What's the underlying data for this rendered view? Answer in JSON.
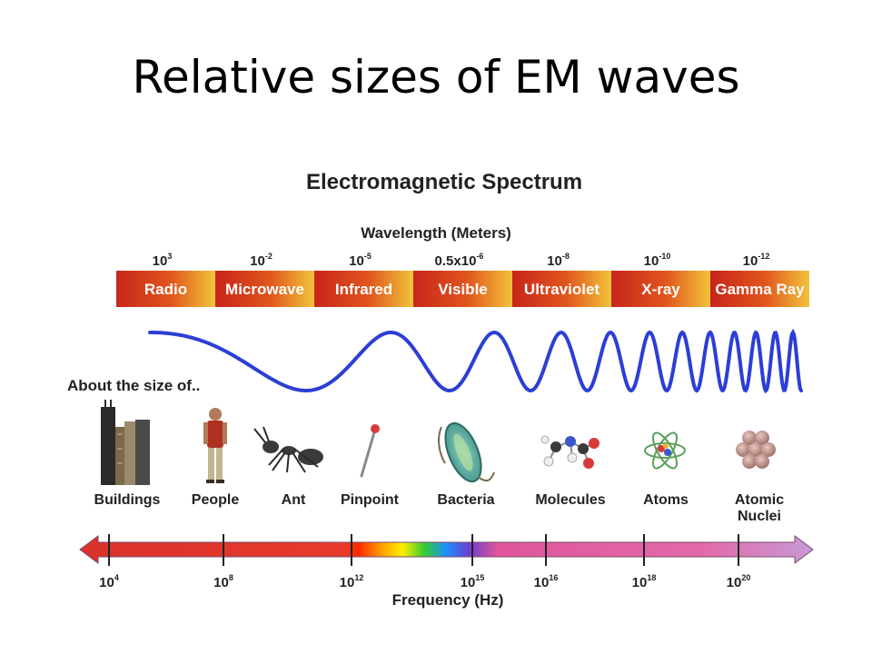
{
  "slide": {
    "title": "Relative sizes of EM waves"
  },
  "diagram": {
    "title": "Electromagnetic Spectrum",
    "wavelength_axis_label": "Wavelength (Meters)",
    "bands": [
      {
        "name": "Radio",
        "wavelength_base": "10",
        "wavelength_exp": "3"
      },
      {
        "name": "Microwave",
        "wavelength_base": "10",
        "wavelength_exp": "-2"
      },
      {
        "name": "Infrared",
        "wavelength_base": "10",
        "wavelength_exp": "-5"
      },
      {
        "name": "Visible",
        "wavelength_base": "0.5x10",
        "wavelength_exp": "-6"
      },
      {
        "name": "Ultraviolet",
        "wavelength_base": "10",
        "wavelength_exp": "-8"
      },
      {
        "name": "X-ray",
        "wavelength_base": "10",
        "wavelength_exp": "-10"
      },
      {
        "name": "Gamma Ray",
        "wavelength_base": "10",
        "wavelength_exp": "-12"
      }
    ],
    "size_heading": "About the size of..",
    "size_objects": [
      {
        "label": "Buildings",
        "icon": "buildings-icon"
      },
      {
        "label": "People",
        "icon": "person-icon"
      },
      {
        "label": "Ant",
        "icon": "ant-icon"
      },
      {
        "label": "Pinpoint",
        "icon": "pin-icon"
      },
      {
        "label": "Bacteria",
        "icon": "bacteria-icon"
      },
      {
        "label": "Molecules",
        "icon": "molecule-icon"
      },
      {
        "label": "Atoms",
        "icon": "atom-icon"
      },
      {
        "label": "Atomic",
        "label2": "Nuclei",
        "icon": "nucleus-icon"
      }
    ],
    "frequency_axis_label": "Frequency (Hz)",
    "frequency_ticks": [
      {
        "base": "10",
        "exp": "4"
      },
      {
        "base": "10",
        "exp": "8"
      },
      {
        "base": "10",
        "exp": "12"
      },
      {
        "base": "10",
        "exp": "15"
      },
      {
        "base": "10",
        "exp": "16"
      },
      {
        "base": "10",
        "exp": "18"
      },
      {
        "base": "10",
        "exp": "20"
      }
    ],
    "colors": {
      "band_start": "#c8251a",
      "band_end": "#f2c33a",
      "wave": "#2b3fd6",
      "arrow_red": "#d8322a",
      "arrow_pink": "#e0559a",
      "arrow_violet": "#c79ad8"
    }
  }
}
